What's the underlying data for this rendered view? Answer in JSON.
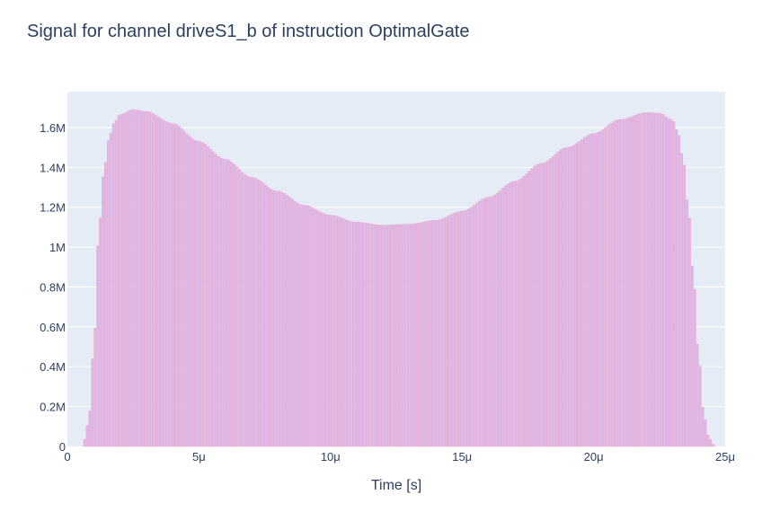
{
  "chart_data": {
    "type": "bar",
    "title": "Signal for channel driveS1_b of instruction OptimalGate",
    "xlabel": "Time [s]",
    "ylabel": "",
    "xlim": [
      0,
      2.5e-05
    ],
    "ylim": [
      0,
      1780000
    ],
    "x_ticks": [
      {
        "value": 0,
        "label": "0"
      },
      {
        "value": 5e-06,
        "label": "5μ"
      },
      {
        "value": 1e-05,
        "label": "10μ"
      },
      {
        "value": 1.5e-05,
        "label": "15μ"
      },
      {
        "value": 2e-05,
        "label": "20μ"
      },
      {
        "value": 2.5e-05,
        "label": "25μ"
      }
    ],
    "y_ticks": [
      {
        "value": 0,
        "label": "0"
      },
      {
        "value": 200000,
        "label": "0.2M"
      },
      {
        "value": 400000,
        "label": "0.4M"
      },
      {
        "value": 600000,
        "label": "0.6M"
      },
      {
        "value": 800000,
        "label": "0.8M"
      },
      {
        "value": 1000000,
        "label": "1M"
      },
      {
        "value": 1200000,
        "label": "1.2M"
      },
      {
        "value": 1400000,
        "label": "1.4M"
      },
      {
        "value": 1600000,
        "label": "1.6M"
      }
    ],
    "grid": true,
    "background_color": "#e5ecf6",
    "bar_fill_color": "#d6b9ec",
    "bar_edge_color": "#f4a6c8",
    "text_color": "#2a3f5f",
    "x": [
      6e-07,
      8e-07,
      1e-06,
      1.2e-06,
      1.4e-06,
      1.6e-06,
      1.8e-06,
      2e-06,
      2.5e-06,
      3e-06,
      4e-06,
      5e-06,
      6e-06,
      7e-06,
      8e-06,
      9e-06,
      1e-05,
      1.1e-05,
      1.2e-05,
      1.3e-05,
      1.4e-05,
      1.5e-05,
      1.6e-05,
      1.7e-05,
      1.8e-05,
      1.9e-05,
      2e-05,
      2.1e-05,
      2.2e-05,
      2.25e-05,
      2.3e-05,
      2.32e-05,
      2.34e-05,
      2.36e-05,
      2.38e-05,
      2.4e-05,
      2.42e-05,
      2.44e-05,
      2.46e-05
    ],
    "y": [
      20000,
      120000,
      500000,
      1100000,
      1400000,
      1560000,
      1630000,
      1665000,
      1690000,
      1680000,
      1620000,
      1530000,
      1440000,
      1350000,
      1280000,
      1210000,
      1160000,
      1125000,
      1110000,
      1115000,
      1135000,
      1180000,
      1250000,
      1330000,
      1420000,
      1500000,
      1570000,
      1640000,
      1675000,
      1672000,
      1640000,
      1580000,
      1450000,
      1200000,
      850000,
      450000,
      150000,
      40000,
      5000
    ]
  }
}
